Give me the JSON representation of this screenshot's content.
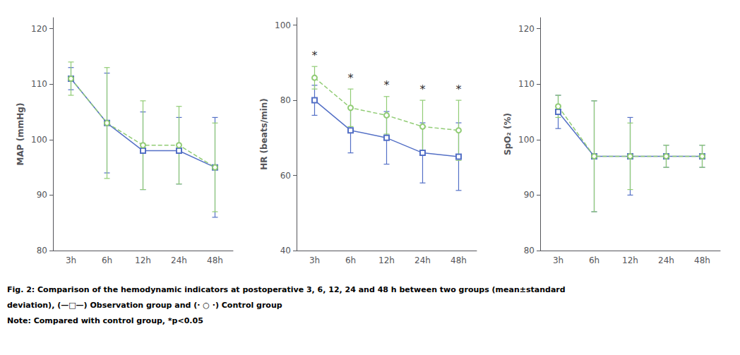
{
  "chart_data": [
    {
      "type": "line",
      "ylabel": "MAP (mmHg)",
      "categories": [
        "3h",
        "6h",
        "12h",
        "24h",
        "48h"
      ],
      "series": [
        {
          "color": "#5470c6",
          "marker": "square",
          "line_style": "solid",
          "values": [
            111,
            103,
            98,
            98,
            95
          ],
          "error": [
            2,
            9,
            7,
            6,
            9
          ]
        },
        {
          "color": "#91cc75",
          "marker": "circle",
          "line_style": "dashed",
          "values": [
            111,
            103,
            99,
            99,
            95
          ],
          "error": [
            3,
            10,
            8,
            7,
            8
          ]
        }
      ],
      "ylim": [
        80,
        122
      ],
      "yticks": [
        80,
        90,
        100,
        110,
        120
      ],
      "grid": false
    },
    {
      "type": "line",
      "ylabel": "HR (beats/min)",
      "categories": [
        "3h",
        "6h",
        "12h",
        "24h",
        "48h"
      ],
      "series": [
        {
          "color": "#5470c6",
          "marker": "square",
          "line_style": "solid",
          "values": [
            80,
            72,
            70,
            66,
            65
          ],
          "error": [
            4,
            6,
            7,
            8,
            9
          ]
        },
        {
          "color": "#91cc75",
          "marker": "circle",
          "line_style": "dashed",
          "values": [
            86,
            78,
            76,
            73,
            72
          ],
          "error": [
            3,
            5,
            5,
            7,
            8
          ]
        }
      ],
      "annotations": [
        {
          "x": "3h",
          "y": 90.5,
          "text": "*"
        },
        {
          "x": "6h",
          "y": 84.5,
          "text": "*"
        },
        {
          "x": "12h",
          "y": 82.5,
          "text": "*"
        },
        {
          "x": "24h",
          "y": 81.5,
          "text": "*"
        },
        {
          "x": "48h",
          "y": 81.5,
          "text": "*"
        }
      ],
      "ylim": [
        40,
        102
      ],
      "yticks": [
        40,
        60,
        80,
        100
      ],
      "grid": false
    },
    {
      "type": "line",
      "ylabel": "SpO₂ (%)",
      "categories": [
        "3h",
        "6h",
        "12h",
        "24h",
        "48h"
      ],
      "series": [
        {
          "color": "#5470c6",
          "marker": "square",
          "line_style": "solid",
          "values": [
            105,
            97,
            97,
            97,
            97
          ],
          "error": [
            3,
            10,
            7,
            2,
            2
          ]
        },
        {
          "color": "#91cc75",
          "marker": "circle",
          "line_style": "dashed",
          "values": [
            106,
            97,
            97,
            97,
            97
          ],
          "error": [
            2,
            10,
            6,
            2,
            2
          ]
        }
      ],
      "ylim": [
        80,
        122
      ],
      "yticks": [
        80,
        90,
        100,
        110,
        120
      ],
      "grid": false
    }
  ],
  "caption": [
    "Fig. 2: Comparison of the hemodynamic indicators at postoperative 3, 6, 12, 24 and 48 h between two groups (mean±standard",
    "deviation), (—□—) Observation group and (· ○ ·) Control group",
    "Note: Compared with control group, *p<0.05"
  ]
}
